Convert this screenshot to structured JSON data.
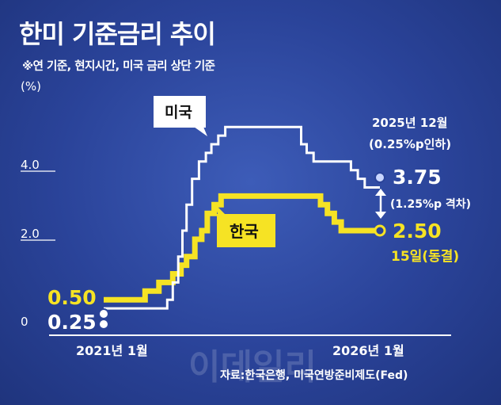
{
  "title": "한미 기준금리 추이",
  "subtitle": "※연 기준, 현지시간, 미국 금리 상단 기준",
  "unit": "(%)",
  "source": "자료:한국은행, 미국연방준비제도(Fed)",
  "watermark": "이데일리",
  "colors": {
    "us": "#ffffff",
    "korea": "#f6e324",
    "background": "#2a4399"
  },
  "chart_data": {
    "type": "line",
    "step": true,
    "title": "한미 기준금리 추이",
    "ylabel": "(%)",
    "ylim": [
      0,
      5.8
    ],
    "y_ticks": [
      {
        "value": 0,
        "label": "0"
      },
      {
        "value": 2.0,
        "label": "2.0"
      },
      {
        "value": 4.0,
        "label": "4.0"
      }
    ],
    "x_range": [
      0,
      1
    ],
    "x_ticks": [
      {
        "value": 0,
        "label": "2021년 1월"
      },
      {
        "value": 1,
        "label": "2026년 1월"
      }
    ],
    "grid": false,
    "series": [
      {
        "name": "미국",
        "color": "#ffffff",
        "start_label": "0.25",
        "end_label": "3.75",
        "x": [
          0,
          0.2,
          0.23,
          0.25,
          0.27,
          0.285,
          0.3,
          0.32,
          0.345,
          0.37,
          0.39,
          0.415,
          0.44,
          0.47,
          0.695,
          0.715,
          0.735,
          0.76,
          0.87,
          0.895,
          0.92,
          0.945,
          1.0
        ],
        "values": [
          0.25,
          0.25,
          0.5,
          1.0,
          1.75,
          2.5,
          3.25,
          4.0,
          4.5,
          4.75,
          5.0,
          5.25,
          5.5,
          5.5,
          5.5,
          5.0,
          4.75,
          4.5,
          4.5,
          4.25,
          4.0,
          3.75,
          3.75
        ]
      },
      {
        "name": "한국",
        "color": "#f6e324",
        "start_label": "0.50",
        "end_label": "2.50",
        "x": [
          0,
          0.1,
          0.15,
          0.2,
          0.25,
          0.28,
          0.3,
          0.33,
          0.355,
          0.375,
          0.4,
          0.425,
          0.45,
          0.76,
          0.785,
          0.81,
          0.835,
          0.86,
          0.89,
          1.0
        ],
        "values": [
          0.5,
          0.5,
          0.75,
          1.0,
          1.25,
          1.5,
          1.75,
          2.25,
          2.5,
          3.0,
          3.25,
          3.5,
          3.5,
          3.5,
          3.25,
          3.0,
          2.75,
          2.5,
          2.5,
          2.5
        ]
      }
    ],
    "annotations": {
      "us_cut_line1": "2025년 12월",
      "us_cut_line2": "(0.25%p인하)",
      "gap": "(1.25%p 격차)",
      "korea_note": "15일(동결)"
    }
  }
}
